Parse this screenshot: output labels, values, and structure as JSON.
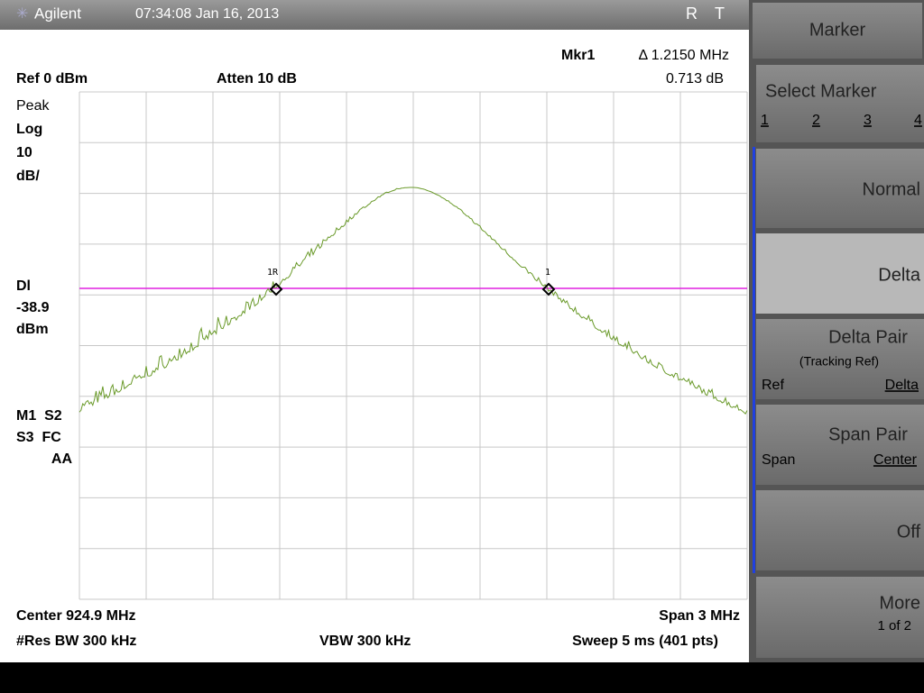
{
  "header": {
    "logo": "Agilent",
    "timestamp": "07:34:08 Jan 16, 2013",
    "status": [
      "R",
      "T"
    ]
  },
  "readout": {
    "marker": "Mkr1",
    "delta": "Δ 1.2150 MHz",
    "level": "0.713 dB",
    "ref": "Ref 0 dBm",
    "atten": "Atten 10 dB"
  },
  "side_labels": [
    "Peak",
    "Log",
    "10",
    "dB/",
    "Dl",
    "-38.9",
    "dBm",
    "M1  S2",
    "S3  FC",
    "AA"
  ],
  "markers": [
    "1R",
    "1"
  ],
  "footer": {
    "center": "Center 924.9 MHz",
    "span": "Span 3 MHz",
    "rbw": "#Res BW 300 kHz",
    "vbw": "VBW 300 kHz",
    "sweep": "Sweep 5 ms (401 pts)"
  },
  "softkeys": {
    "title": "Marker",
    "keys": [
      {
        "label": "Select Marker",
        "options": [
          "1",
          "2",
          "3",
          "4"
        ]
      },
      {
        "label": "Normal"
      },
      {
        "label": "Delta"
      },
      {
        "label": "Delta Pair",
        "sub": "(Tracking Ref)",
        "options": [
          "Ref",
          "Delta"
        ]
      },
      {
        "label": "Span Pair",
        "options": [
          "Span",
          "Center"
        ]
      },
      {
        "label": "Off"
      },
      {
        "label": "More",
        "sub": "1 of 2"
      }
    ]
  }
}
